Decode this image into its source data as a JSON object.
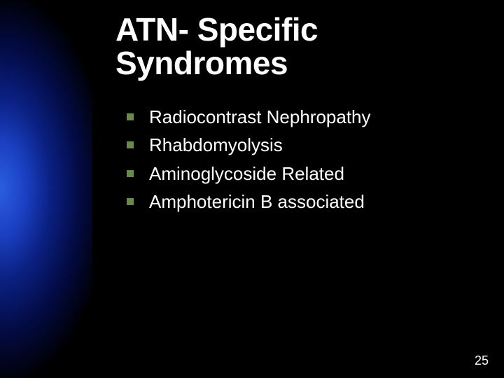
{
  "slide": {
    "title_line1": "ATN- Specific",
    "title_line2": "Syndromes",
    "bullets": [
      "Radiocontrast Nephropathy",
      "Rhabdomyolysis",
      "Aminoglycoside Related",
      "Amphotericin  B associated"
    ],
    "page_number": "25"
  },
  "style": {
    "background_color": "#000000",
    "gradient_colors": [
      "#2a5fe0",
      "#1a3fc0",
      "#0a1f80",
      "#030a40",
      "#000000"
    ],
    "title_color": "#ffffff",
    "title_fontsize": 46,
    "title_fontweight": "bold",
    "bullet_marker_color": "#6a8a4a",
    "bullet_marker_size": 10,
    "bullet_text_color": "#ffffff",
    "bullet_text_fontsize": 26,
    "page_number_color": "#ffffff",
    "page_number_fontsize": 18,
    "gradient_bar_width": 132
  }
}
